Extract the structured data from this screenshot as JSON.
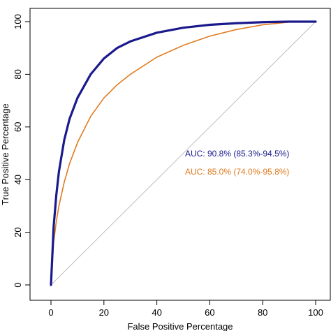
{
  "chart_data": {
    "type": "line",
    "xlabel": "False Positive Percentage",
    "ylabel": "True Positive Percentage",
    "xlim": [
      0,
      100
    ],
    "ylim": [
      0,
      100
    ],
    "x_ticks": [
      0,
      20,
      40,
      60,
      80,
      100
    ],
    "y_ticks": [
      0,
      20,
      40,
      60,
      80,
      100
    ],
    "grid": false,
    "reference_line": {
      "x": [
        0,
        100
      ],
      "y": [
        0,
        100
      ],
      "color": "#bdbdbd"
    },
    "series": [
      {
        "color": "#1a1a8c",
        "x": [
          0,
          1,
          2,
          3,
          5,
          7,
          10,
          15,
          20,
          25,
          30,
          40,
          50,
          60,
          70,
          80,
          90,
          100
        ],
        "y": [
          0,
          22,
          34,
          43,
          55,
          63,
          71,
          80,
          86,
          90,
          92.5,
          95.8,
          97.7,
          98.8,
          99.4,
          99.8,
          100,
          100
        ]
      },
      {
        "color": "#e07b20",
        "x": [
          0,
          1,
          2,
          3,
          5,
          7,
          10,
          15,
          20,
          25,
          30,
          40,
          50,
          60,
          70,
          80,
          90,
          100
        ],
        "y": [
          0,
          16,
          24,
          30,
          39,
          46,
          54,
          64,
          71,
          76,
          80,
          86.5,
          91,
          94.5,
          97,
          98.8,
          99.8,
          100
        ]
      }
    ],
    "annotations": [
      {
        "text": "AUC: 90.8% (85.3%-94.5%)",
        "color": "#1a1a8c"
      },
      {
        "text": "AUC: 85.0% (74.0%-95.8%)",
        "color": "#e07b20"
      }
    ]
  }
}
